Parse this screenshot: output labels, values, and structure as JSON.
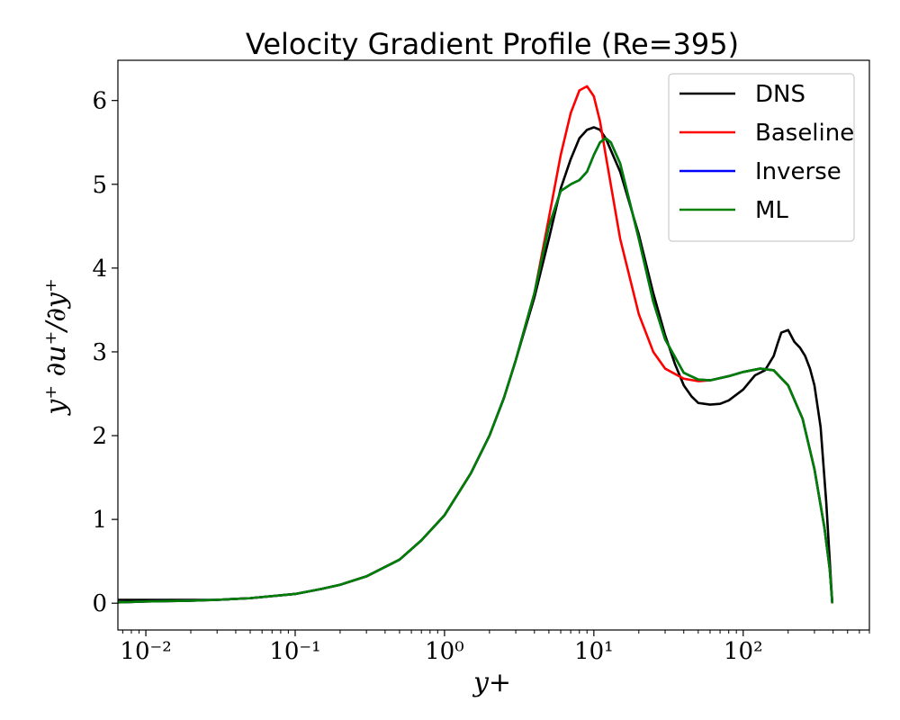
{
  "chart_data": {
    "type": "line",
    "title": "Velocity Gradient Profile (Re=395)",
    "xlabel": "y+",
    "ylabel": "y⁺ ∂u⁺/∂y⁺",
    "xscale": "log",
    "xlim": [
      0.0065,
      700
    ],
    "ylim": [
      -0.32,
      6.48
    ],
    "x_ticks": [
      0.01,
      0.1,
      1,
      10,
      100
    ],
    "x_tick_labels": [
      "10⁻²",
      "10⁻¹",
      "10⁰",
      "10¹",
      "10²"
    ],
    "y_ticks": [
      0,
      1,
      2,
      3,
      4,
      5,
      6
    ],
    "y_tick_labels": [
      "0",
      "1",
      "2",
      "3",
      "4",
      "5",
      "6"
    ],
    "grid": false,
    "legend_position": "top-right",
    "series": [
      {
        "name": "DNS",
        "color": "#000000",
        "x": [
          0.0065,
          0.01,
          0.02,
          0.03,
          0.05,
          0.1,
          0.15,
          0.2,
          0.3,
          0.5,
          0.7,
          1.0,
          1.5,
          2.0,
          2.5,
          3.0,
          4.0,
          5.0,
          6.0,
          7.0,
          8.0,
          9.0,
          10.0,
          11.0,
          12.0,
          15.0,
          20.0,
          25.0,
          30.0,
          35.0,
          40.0,
          45.0,
          50.0,
          60.0,
          70.0,
          80.0,
          100.0,
          120.0,
          140.0,
          160.0,
          170.0,
          180.0,
          200.0,
          220.0,
          240.0,
          260.0,
          280.0,
          300.0,
          330.0,
          360.0,
          380.0,
          395.0
        ],
        "y": [
          0.04,
          0.04,
          0.04,
          0.04,
          0.06,
          0.11,
          0.17,
          0.22,
          0.32,
          0.52,
          0.75,
          1.05,
          1.55,
          2.0,
          2.45,
          2.9,
          3.65,
          4.35,
          4.95,
          5.3,
          5.55,
          5.65,
          5.68,
          5.65,
          5.55,
          5.15,
          4.4,
          3.7,
          3.2,
          2.85,
          2.6,
          2.47,
          2.39,
          2.37,
          2.38,
          2.42,
          2.55,
          2.72,
          2.78,
          2.95,
          3.1,
          3.23,
          3.26,
          3.12,
          3.05,
          2.95,
          2.8,
          2.6,
          2.1,
          1.2,
          0.5,
          0.0
        ]
      },
      {
        "name": "Baseline",
        "color": "#ff0000",
        "x": [
          0.0065,
          0.01,
          0.02,
          0.03,
          0.05,
          0.1,
          0.15,
          0.2,
          0.3,
          0.5,
          0.7,
          1.0,
          1.5,
          2.0,
          2.5,
          3.0,
          4.0,
          5.0,
          6.0,
          7.0,
          8.0,
          9.0,
          10.0,
          11.0,
          12.0,
          15.0,
          20.0,
          25.0,
          30.0,
          40.0,
          50.0,
          60.0,
          80.0,
          100.0,
          130.0,
          160.0,
          200.0,
          250.0,
          300.0,
          350.0,
          380.0,
          395.0
        ],
        "y": [
          0.01,
          0.02,
          0.03,
          0.04,
          0.06,
          0.11,
          0.17,
          0.22,
          0.32,
          0.52,
          0.75,
          1.05,
          1.55,
          2.0,
          2.45,
          2.9,
          3.7,
          4.6,
          5.35,
          5.85,
          6.12,
          6.17,
          6.05,
          5.75,
          5.35,
          4.35,
          3.45,
          3.0,
          2.8,
          2.68,
          2.65,
          2.66,
          2.71,
          2.76,
          2.8,
          2.78,
          2.6,
          2.2,
          1.6,
          0.9,
          0.4,
          0.0
        ]
      },
      {
        "name": "Inverse",
        "color": "#0000ff",
        "x": [
          0.0065,
          0.01,
          0.02,
          0.03,
          0.05,
          0.1,
          0.15,
          0.2,
          0.3,
          0.5,
          0.7,
          1.0,
          1.5,
          2.0,
          2.5,
          3.0,
          4.0,
          5.0,
          6.0,
          7.0,
          8.0,
          9.0,
          10.0,
          11.0,
          12.0,
          13.0,
          15.0,
          20.0,
          25.0,
          30.0,
          40.0,
          50.0,
          60.0,
          80.0,
          100.0,
          130.0,
          160.0,
          200.0,
          250.0,
          300.0,
          350.0,
          380.0,
          395.0
        ],
        "y": [
          0.01,
          0.02,
          0.03,
          0.04,
          0.06,
          0.11,
          0.17,
          0.22,
          0.32,
          0.52,
          0.75,
          1.05,
          1.55,
          2.0,
          2.45,
          2.9,
          3.7,
          4.5,
          4.92,
          5.0,
          5.05,
          5.15,
          5.35,
          5.5,
          5.55,
          5.5,
          5.25,
          4.35,
          3.6,
          3.15,
          2.75,
          2.67,
          2.66,
          2.71,
          2.76,
          2.8,
          2.78,
          2.6,
          2.2,
          1.6,
          0.9,
          0.4,
          0.0
        ]
      },
      {
        "name": "ML",
        "color": "#008000",
        "x": [
          0.0065,
          0.01,
          0.02,
          0.03,
          0.05,
          0.1,
          0.15,
          0.2,
          0.3,
          0.5,
          0.7,
          1.0,
          1.5,
          2.0,
          2.5,
          3.0,
          4.0,
          5.0,
          6.0,
          7.0,
          8.0,
          9.0,
          10.0,
          11.0,
          12.0,
          13.0,
          15.0,
          20.0,
          25.0,
          30.0,
          40.0,
          50.0,
          60.0,
          80.0,
          100.0,
          130.0,
          160.0,
          200.0,
          250.0,
          300.0,
          350.0,
          380.0,
          395.0
        ],
        "y": [
          0.01,
          0.02,
          0.03,
          0.04,
          0.06,
          0.11,
          0.17,
          0.22,
          0.32,
          0.52,
          0.75,
          1.05,
          1.55,
          2.0,
          2.45,
          2.9,
          3.7,
          4.5,
          4.92,
          5.0,
          5.05,
          5.15,
          5.35,
          5.5,
          5.55,
          5.5,
          5.25,
          4.35,
          3.6,
          3.15,
          2.75,
          2.67,
          2.66,
          2.71,
          2.76,
          2.8,
          2.78,
          2.6,
          2.2,
          1.6,
          0.9,
          0.4,
          0.0
        ]
      }
    ]
  }
}
